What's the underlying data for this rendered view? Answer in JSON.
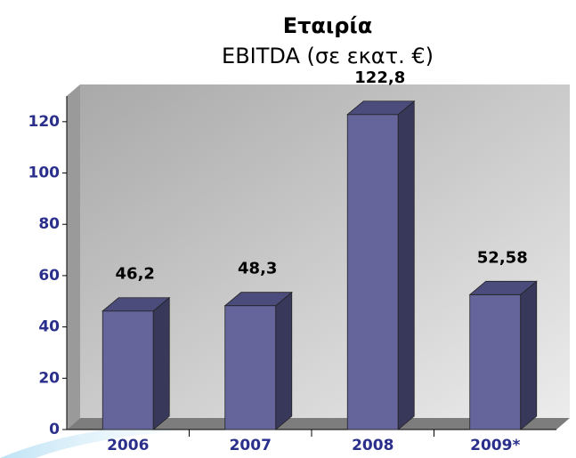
{
  "chart_data": {
    "type": "bar3d",
    "title": "Εταιρία",
    "subtitle": "EBITDA (σε εκατ. €)",
    "categories": [
      "2006",
      "2007",
      "2008",
      "2009*"
    ],
    "values": [
      46.2,
      48.3,
      122.8,
      52.58
    ],
    "value_labels": [
      "46,2",
      "48,3",
      "122,8",
      "52,58"
    ],
    "color": "#65659c",
    "ylim": [
      0,
      130
    ],
    "yticks": [
      0,
      20,
      40,
      60,
      80,
      100,
      120
    ],
    "grid": false
  }
}
